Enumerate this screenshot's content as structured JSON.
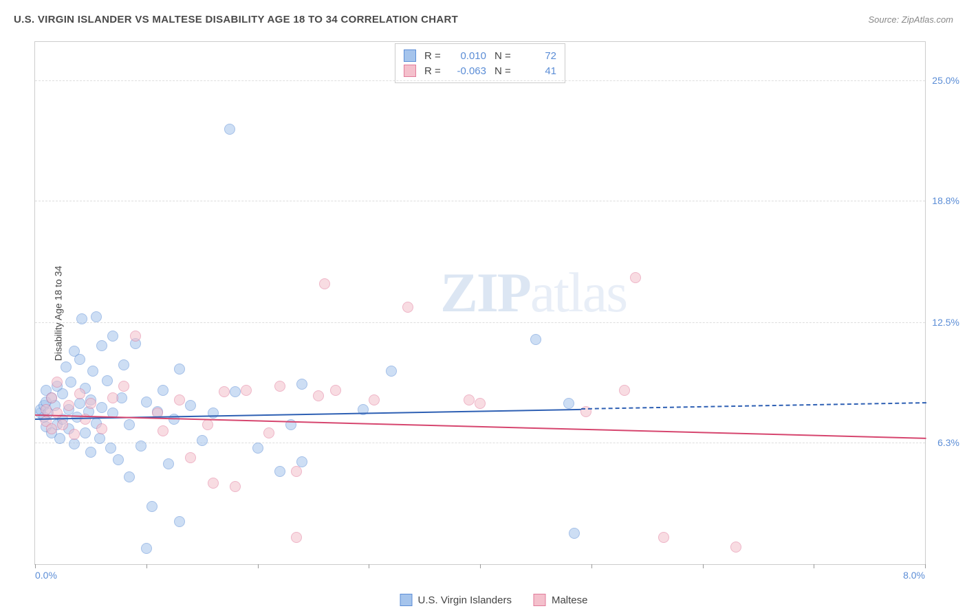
{
  "header": {
    "title": "U.S. VIRGIN ISLANDER VS MALTESE DISABILITY AGE 18 TO 34 CORRELATION CHART",
    "source": "Source: ZipAtlas.com"
  },
  "chart": {
    "type": "scatter",
    "y_axis_label": "Disability Age 18 to 34",
    "xlim": [
      0.0,
      8.0
    ],
    "ylim": [
      0.0,
      27.0
    ],
    "x_ticks": [
      0.0,
      1.0,
      2.0,
      3.0,
      4.0,
      5.0,
      6.0,
      7.0,
      8.0
    ],
    "x_tick_labels": {
      "0": "0.0%",
      "8": "8.0%"
    },
    "y_ticks": [
      6.3,
      12.5,
      18.8,
      25.0
    ],
    "y_tick_labels": [
      "6.3%",
      "12.5%",
      "18.8%",
      "25.0%"
    ],
    "grid_color": "#dddddd",
    "background_color": "#ffffff",
    "border_color": "#cccccc",
    "marker_radius": 8,
    "marker_opacity": 0.55,
    "watermark": {
      "text_bold": "ZIP",
      "text_rest": "atlas",
      "color": "#e8eef7"
    },
    "series": [
      {
        "name": "U.S. Virgin Islanders",
        "fill_color": "#a5c4ec",
        "stroke_color": "#5b8dd6",
        "regression": {
          "x1": 0.0,
          "y1": 7.6,
          "x2": 4.9,
          "y2": 8.1,
          "dashed_to_x": 8.0,
          "color": "#2d5fb3"
        },
        "stats": {
          "R": "0.010",
          "N": "72"
        },
        "points": [
          [
            0.05,
            7.8
          ],
          [
            0.05,
            8.0
          ],
          [
            0.08,
            7.6
          ],
          [
            0.08,
            8.2
          ],
          [
            0.1,
            7.1
          ],
          [
            0.1,
            8.4
          ],
          [
            0.1,
            9.0
          ],
          [
            0.12,
            7.8
          ],
          [
            0.15,
            6.8
          ],
          [
            0.15,
            8.6
          ],
          [
            0.18,
            8.2
          ],
          [
            0.2,
            7.2
          ],
          [
            0.2,
            9.2
          ],
          [
            0.22,
            6.5
          ],
          [
            0.25,
            7.5
          ],
          [
            0.25,
            8.8
          ],
          [
            0.28,
            10.2
          ],
          [
            0.3,
            7.0
          ],
          [
            0.3,
            8.0
          ],
          [
            0.32,
            9.4
          ],
          [
            0.35,
            6.2
          ],
          [
            0.35,
            11.0
          ],
          [
            0.38,
            7.6
          ],
          [
            0.4,
            8.3
          ],
          [
            0.4,
            10.6
          ],
          [
            0.42,
            12.7
          ],
          [
            0.45,
            6.8
          ],
          [
            0.45,
            9.1
          ],
          [
            0.48,
            7.9
          ],
          [
            0.5,
            5.8
          ],
          [
            0.5,
            8.5
          ],
          [
            0.52,
            10.0
          ],
          [
            0.55,
            7.3
          ],
          [
            0.55,
            12.8
          ],
          [
            0.58,
            6.5
          ],
          [
            0.6,
            8.1
          ],
          [
            0.6,
            11.3
          ],
          [
            0.65,
            9.5
          ],
          [
            0.68,
            6.0
          ],
          [
            0.7,
            7.8
          ],
          [
            0.7,
            11.8
          ],
          [
            0.75,
            5.4
          ],
          [
            0.78,
            8.6
          ],
          [
            0.8,
            10.3
          ],
          [
            0.85,
            4.5
          ],
          [
            0.85,
            7.2
          ],
          [
            0.9,
            11.4
          ],
          [
            0.95,
            6.1
          ],
          [
            1.0,
            8.4
          ],
          [
            1.0,
            0.8
          ],
          [
            1.05,
            3.0
          ],
          [
            1.1,
            7.9
          ],
          [
            1.15,
            9.0
          ],
          [
            1.2,
            5.2
          ],
          [
            1.25,
            7.5
          ],
          [
            1.3,
            10.1
          ],
          [
            1.3,
            2.2
          ],
          [
            1.4,
            8.2
          ],
          [
            1.5,
            6.4
          ],
          [
            1.6,
            7.8
          ],
          [
            1.75,
            22.5
          ],
          [
            1.8,
            8.9
          ],
          [
            2.0,
            6.0
          ],
          [
            2.2,
            4.8
          ],
          [
            2.3,
            7.2
          ],
          [
            2.4,
            5.3
          ],
          [
            2.4,
            9.3
          ],
          [
            2.95,
            8.0
          ],
          [
            3.2,
            10.0
          ],
          [
            4.5,
            11.6
          ],
          [
            4.8,
            8.3
          ],
          [
            4.85,
            1.6
          ]
        ]
      },
      {
        "name": "Maltese",
        "fill_color": "#f4c0cc",
        "stroke_color": "#e17a9a",
        "regression": {
          "x1": 0.0,
          "y1": 7.8,
          "x2": 8.0,
          "y2": 6.6,
          "color": "#d6456e"
        },
        "stats": {
          "R": "-0.063",
          "N": "41"
        },
        "points": [
          [
            0.1,
            7.4
          ],
          [
            0.1,
            8.0
          ],
          [
            0.15,
            7.0
          ],
          [
            0.15,
            8.6
          ],
          [
            0.2,
            7.8
          ],
          [
            0.2,
            9.4
          ],
          [
            0.25,
            7.2
          ],
          [
            0.3,
            8.2
          ],
          [
            0.35,
            6.7
          ],
          [
            0.4,
            8.8
          ],
          [
            0.45,
            7.5
          ],
          [
            0.5,
            8.3
          ],
          [
            0.6,
            7.0
          ],
          [
            0.7,
            8.6
          ],
          [
            0.8,
            9.2
          ],
          [
            0.9,
            11.8
          ],
          [
            1.1,
            7.8
          ],
          [
            1.15,
            6.9
          ],
          [
            1.3,
            8.5
          ],
          [
            1.4,
            5.5
          ],
          [
            1.55,
            7.2
          ],
          [
            1.6,
            4.2
          ],
          [
            1.7,
            8.9
          ],
          [
            1.8,
            4.0
          ],
          [
            1.9,
            9.0
          ],
          [
            2.1,
            6.8
          ],
          [
            2.2,
            9.2
          ],
          [
            2.35,
            4.8
          ],
          [
            2.35,
            1.4
          ],
          [
            2.55,
            8.7
          ],
          [
            2.6,
            14.5
          ],
          [
            2.7,
            9.0
          ],
          [
            3.05,
            8.5
          ],
          [
            3.35,
            13.3
          ],
          [
            3.9,
            8.5
          ],
          [
            4.0,
            8.3
          ],
          [
            5.3,
            9.0
          ],
          [
            5.4,
            14.8
          ],
          [
            5.65,
            1.4
          ],
          [
            6.3,
            0.9
          ],
          [
            4.95,
            7.9
          ]
        ]
      }
    ],
    "legend_bottom": [
      {
        "swatch_fill": "#a5c4ec",
        "swatch_stroke": "#5b8dd6",
        "label": "U.S. Virgin Islanders"
      },
      {
        "swatch_fill": "#f4c0cc",
        "swatch_stroke": "#e17a9a",
        "label": "Maltese"
      }
    ]
  }
}
